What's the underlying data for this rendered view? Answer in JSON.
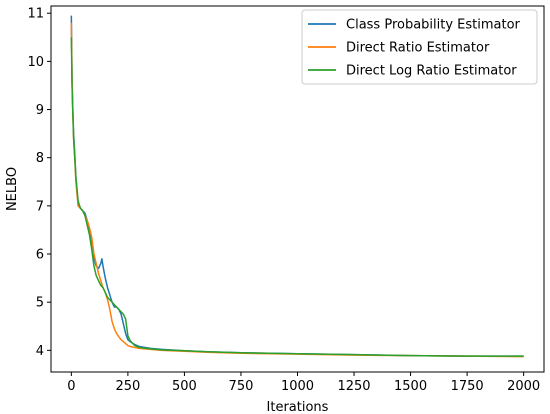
{
  "chart_data": {
    "type": "line",
    "title": "",
    "xlabel": "Iterations",
    "ylabel": "NELBO",
    "xlim": [
      -90,
      2090
    ],
    "ylim": [
      3.55,
      11.15
    ],
    "xticks": [
      0,
      250,
      500,
      750,
      1000,
      1250,
      1500,
      1750,
      2000
    ],
    "yticks": [
      4,
      5,
      6,
      7,
      8,
      9,
      10,
      11
    ],
    "grid": false,
    "legend_position": "top-right",
    "series": [
      {
        "name": "Class Probability Estimator",
        "color": "#1f77b4",
        "x": [
          0,
          3,
          6,
          10,
          15,
          20,
          30,
          40,
          50,
          60,
          70,
          80,
          90,
          100,
          110,
          120,
          130,
          135,
          140,
          150,
          160,
          170,
          180,
          190,
          200,
          210,
          220,
          230,
          240,
          250,
          260,
          270,
          280,
          300,
          350,
          400,
          500,
          600,
          750,
          1000,
          1250,
          1500,
          1750,
          2000
        ],
        "y": [
          10.95,
          9.6,
          9.1,
          8.5,
          8.1,
          7.6,
          7.0,
          6.95,
          6.9,
          6.85,
          6.7,
          6.5,
          6.2,
          5.9,
          5.75,
          5.7,
          5.8,
          5.9,
          5.75,
          5.5,
          5.3,
          5.15,
          5.0,
          4.9,
          4.9,
          4.85,
          4.75,
          4.55,
          4.35,
          4.22,
          4.18,
          4.15,
          4.12,
          4.08,
          4.04,
          4.02,
          3.99,
          3.97,
          3.95,
          3.93,
          3.91,
          3.89,
          3.88,
          3.88
        ]
      },
      {
        "name": "Direct Ratio Estimator",
        "color": "#ff7f0e",
        "x": [
          0,
          3,
          6,
          10,
          15,
          20,
          30,
          40,
          50,
          60,
          70,
          80,
          90,
          100,
          110,
          120,
          130,
          140,
          150,
          160,
          170,
          180,
          190,
          200,
          210,
          220,
          230,
          240,
          250,
          260,
          270,
          280,
          300,
          350,
          400,
          500,
          600,
          750,
          1000,
          1250,
          1500,
          1750,
          2000
        ],
        "y": [
          10.8,
          9.7,
          9.0,
          8.4,
          8.0,
          7.5,
          7.0,
          6.95,
          6.9,
          6.8,
          6.7,
          6.55,
          6.35,
          6.0,
          5.8,
          5.6,
          5.45,
          5.3,
          5.2,
          5.05,
          4.85,
          4.6,
          4.45,
          4.35,
          4.28,
          4.22,
          4.18,
          4.14,
          4.1,
          4.08,
          4.07,
          4.06,
          4.04,
          4.02,
          4.0,
          3.98,
          3.96,
          3.94,
          3.92,
          3.9,
          3.89,
          3.88,
          3.87
        ]
      },
      {
        "name": "Direct Log Ratio Estimator",
        "color": "#2ca02c",
        "x": [
          0,
          3,
          6,
          10,
          15,
          20,
          30,
          40,
          50,
          60,
          70,
          80,
          90,
          100,
          110,
          120,
          130,
          140,
          150,
          160,
          170,
          180,
          190,
          200,
          210,
          220,
          230,
          240,
          250,
          260,
          270,
          280,
          300,
          350,
          400,
          500,
          600,
          750,
          1000,
          1250,
          1500,
          1750,
          2000
        ],
        "y": [
          10.5,
          9.5,
          9.0,
          8.4,
          8.0,
          7.6,
          7.1,
          6.95,
          6.9,
          6.8,
          6.6,
          6.4,
          6.1,
          5.75,
          5.55,
          5.45,
          5.35,
          5.3,
          5.2,
          5.1,
          5.05,
          5.0,
          4.95,
          4.9,
          4.85,
          4.8,
          4.75,
          4.65,
          4.3,
          4.2,
          4.15,
          4.1,
          4.06,
          4.03,
          4.01,
          3.99,
          3.97,
          3.95,
          3.93,
          3.91,
          3.89,
          3.88,
          3.88
        ]
      }
    ]
  }
}
